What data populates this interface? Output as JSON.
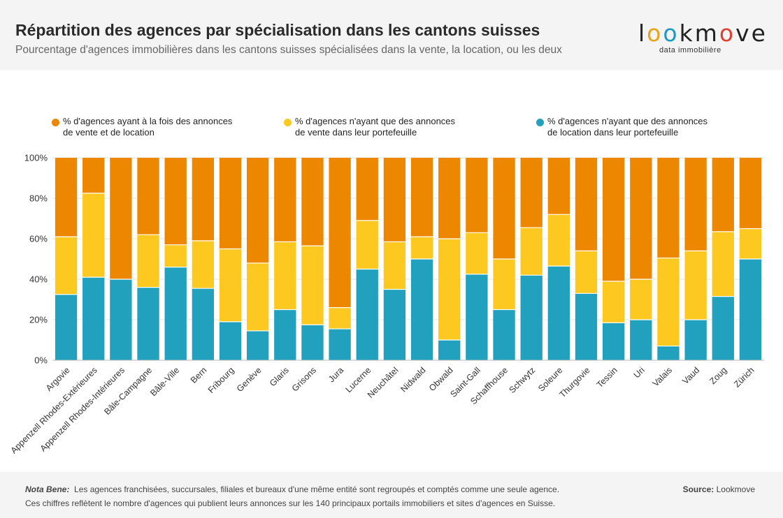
{
  "header": {
    "title": "Répartition des agences par spécialisation dans les cantons suisses",
    "subtitle": "Pourcentage d'agences immobilières dans les cantons suisses spécialisées dans la vente, la location, ou les deux"
  },
  "logo": {
    "letters": [
      "l",
      "o",
      "o",
      "k",
      "m",
      "o",
      "v",
      "e"
    ],
    "letter_colors": [
      "#222222",
      "#e8a317",
      "#1a9bc7",
      "#222222",
      "#222222",
      "#e0402f",
      "#222222",
      "#222222"
    ],
    "tagline": "data immobilière"
  },
  "legend": {
    "both_line1": "% d'agences ayant à la fois des annonces",
    "both_line2": "de vente et de location",
    "sale_line1": "% d'agences n'ayant que des annonces",
    "sale_line2": "de vente dans leur portefeuille",
    "rent_line1": "% d'agences n'ayant que des annonces",
    "rent_line2": "de location dans leur portefeuille"
  },
  "colors": {
    "both": "#ed8700",
    "sale": "#fdc81f",
    "rent": "#21a1bd"
  },
  "footer": {
    "note_label": "Nota Bene:",
    "note_text": "Les agences franchisées, succursales, filiales et bureaux d'une même entité sont regroupés et comptés comme une seule agence.",
    "note_line2": "Ces chiffres reflètent le nombre d'agences qui publient leurs annonces sur les 140 principaux portails immobiliers et sites d'agences en Suisse.",
    "source_label": "Source:",
    "source_value": "Lookmove"
  },
  "chart_data": {
    "type": "bar",
    "stacked": true,
    "title": "Répartition des agences par spécialisation dans les cantons suisses",
    "ylabel": "",
    "ylim": [
      0,
      100
    ],
    "yticks": [
      "0%",
      "20%",
      "40%",
      "60%",
      "80%",
      "100%"
    ],
    "legend_position": "top",
    "categories": [
      "Argovie",
      "Appenzell Rhodes-Extérieures",
      "Appenzell Rhodes-Intérieures",
      "Bâle-Campagne",
      "Bâle-Ville",
      "Bern",
      "Fribourg",
      "Genève",
      "Glaris",
      "Grisons",
      "Jura",
      "Lucerne",
      "Neuchâtel",
      "Nidwald",
      "Obwald",
      "Saint-Gall",
      "Schaffhouse",
      "Schwytz",
      "Soleure",
      "Thurgovie",
      "Tessin",
      "Uri",
      "Valais",
      "Vaud",
      "Zoug",
      "Zürich"
    ],
    "series": [
      {
        "name": "% d'agences n'ayant que des annonces de location dans leur portefeuille",
        "key": "rent",
        "values": [
          32.5,
          41,
          40,
          36,
          46,
          35.5,
          19,
          14.5,
          25,
          17.5,
          15.5,
          45,
          35,
          50,
          10,
          42.5,
          25,
          42,
          46.5,
          33,
          18.5,
          20,
          7,
          20,
          31.5,
          50
        ]
      },
      {
        "name": "% d'agences n'ayant que des annonces de vente dans leur portefeuille",
        "key": "sale",
        "values": [
          28.5,
          41.5,
          0,
          26,
          11,
          23.5,
          36,
          33.5,
          33.5,
          39,
          10.5,
          24,
          23.5,
          11,
          50,
          20.5,
          25,
          23.5,
          25.5,
          21,
          20.5,
          20,
          43.5,
          34,
          32,
          15
        ]
      },
      {
        "name": "% d'agences ayant à la fois des annonces de vente et de location",
        "key": "both",
        "values": [
          39,
          17.5,
          60,
          38,
          43,
          41,
          45,
          52,
          41.5,
          43.5,
          74,
          31,
          41.5,
          39,
          40,
          37,
          50,
          34.5,
          28,
          46,
          61,
          60,
          49.5,
          46,
          36.5,
          35
        ]
      }
    ]
  }
}
